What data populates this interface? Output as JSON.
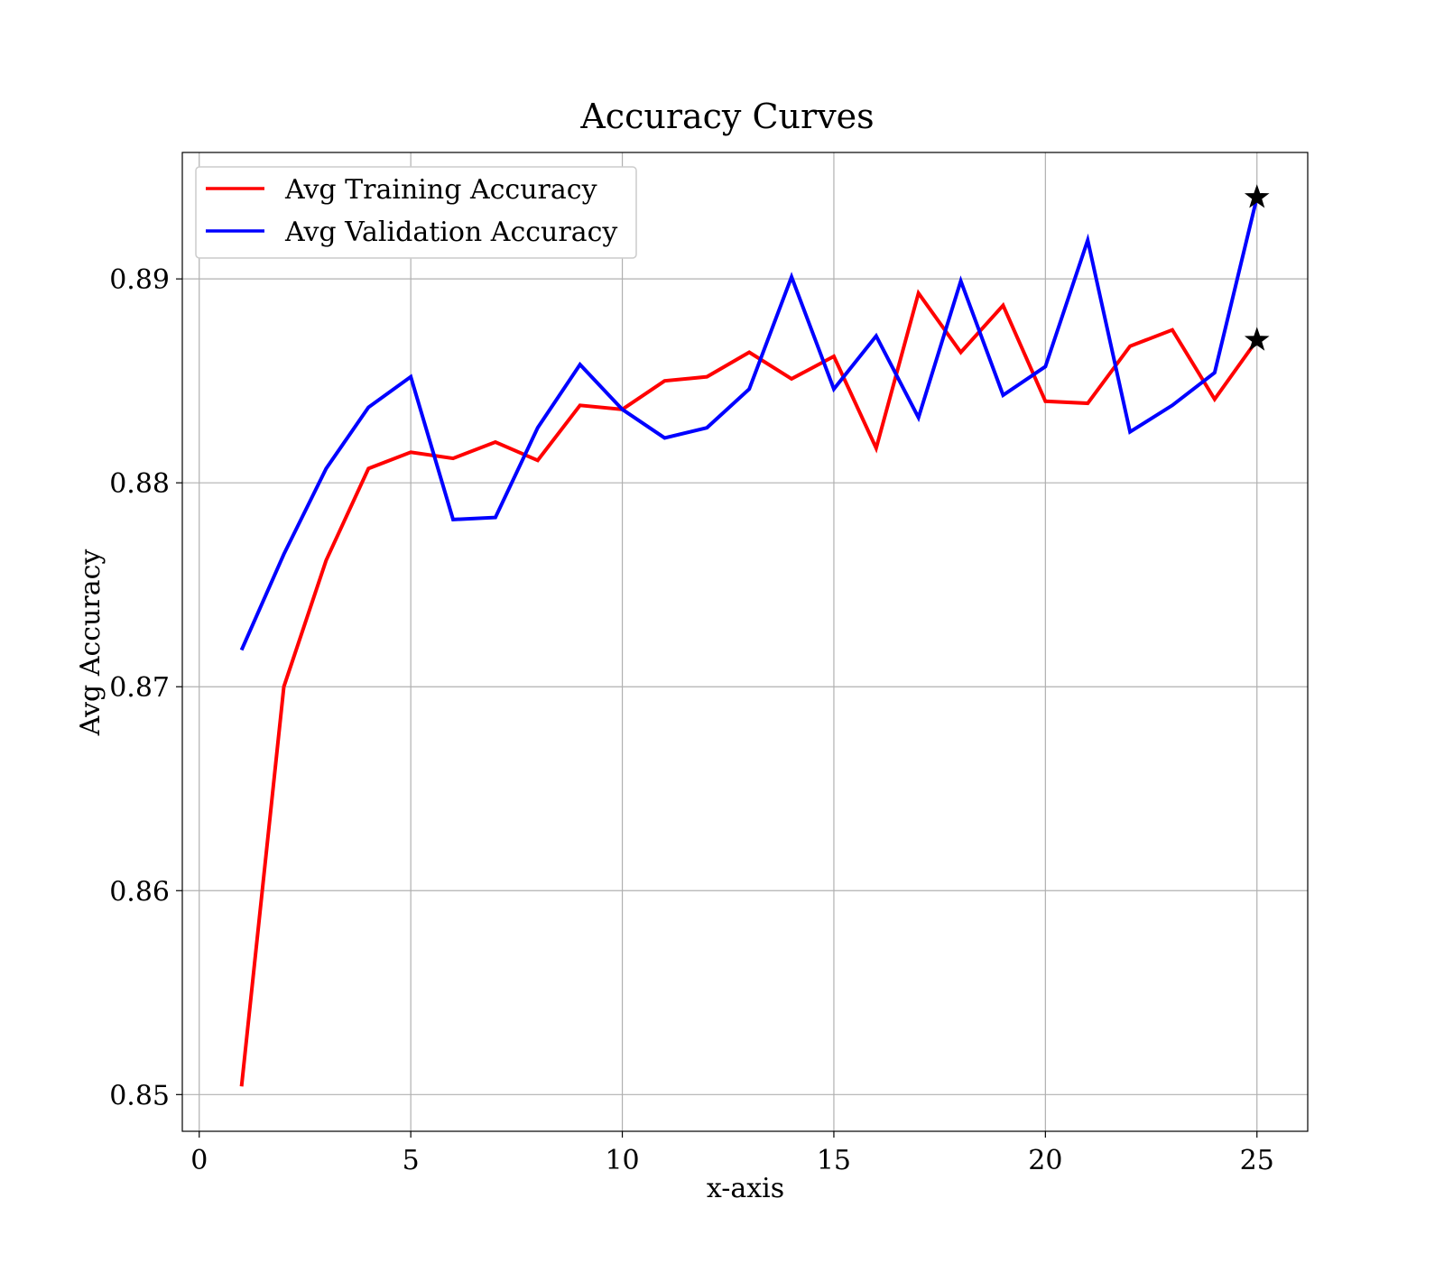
{
  "chart_data": {
    "type": "line",
    "title": "Accuracy Curves",
    "xlabel": "x-axis",
    "ylabel": "Avg Accuracy",
    "xlim": [
      -0.4,
      26.2
    ],
    "ylim": [
      0.8482,
      0.8962
    ],
    "xticks": [
      0,
      5,
      10,
      15,
      20,
      25
    ],
    "yticks": [
      0.85,
      0.86,
      0.87,
      0.88,
      0.89
    ],
    "ytick_labels": [
      "0.85",
      "0.86",
      "0.87",
      "0.88",
      "0.89"
    ],
    "grid": true,
    "legend_position": "top-left",
    "x": [
      1,
      2,
      3,
      4,
      5,
      6,
      7,
      8,
      9,
      10,
      11,
      12,
      13,
      14,
      15,
      16,
      17,
      18,
      19,
      20,
      21,
      22,
      23,
      24,
      25
    ],
    "series": [
      {
        "name": "Avg Training Accuracy",
        "color": "#ff0000",
        "values": [
          0.8504,
          0.87,
          0.8762,
          0.8807,
          0.8815,
          0.8812,
          0.882,
          0.8811,
          0.8838,
          0.8836,
          0.885,
          0.8852,
          0.8864,
          0.8851,
          0.8862,
          0.8817,
          0.8893,
          0.8864,
          0.8887,
          0.884,
          0.8839,
          0.8867,
          0.8875,
          0.8841,
          0.887
        ],
        "marker_last": "star"
      },
      {
        "name": "Avg Validation Accuracy",
        "color": "#0000ff",
        "values": [
          0.8718,
          0.8765,
          0.8807,
          0.8837,
          0.8852,
          0.8782,
          0.8783,
          0.8827,
          0.8858,
          0.8836,
          0.8822,
          0.8827,
          0.8846,
          0.8901,
          0.8846,
          0.8872,
          0.8832,
          0.8899,
          0.8843,
          0.8857,
          0.8919,
          0.8825,
          0.8838,
          0.8854,
          0.894
        ],
        "marker_last": "star"
      }
    ]
  }
}
